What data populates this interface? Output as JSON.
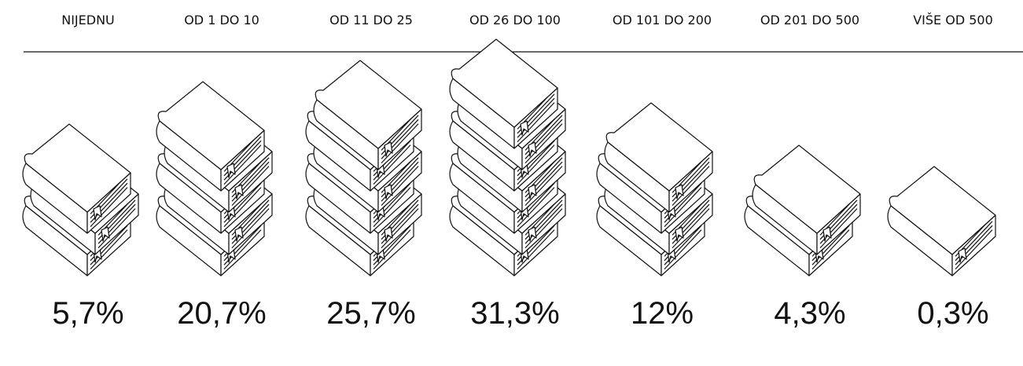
{
  "chart_data": {
    "type": "pictogram",
    "categories": [
      "NIJEDNU",
      "OD 1 DO 10",
      "OD 11 DO 25",
      "OD 26 DO 100",
      "OD 101 DO 200",
      "OD 201 DO 500",
      "VIŠE OD 500"
    ],
    "values": [
      5.7,
      20.7,
      25.7,
      31.3,
      12,
      4.3,
      0.3
    ],
    "value_labels": [
      "5,7%",
      "20,7%",
      "25,7%",
      "31,3%",
      "12%",
      "4,3%",
      "0,3%"
    ]
  }
}
